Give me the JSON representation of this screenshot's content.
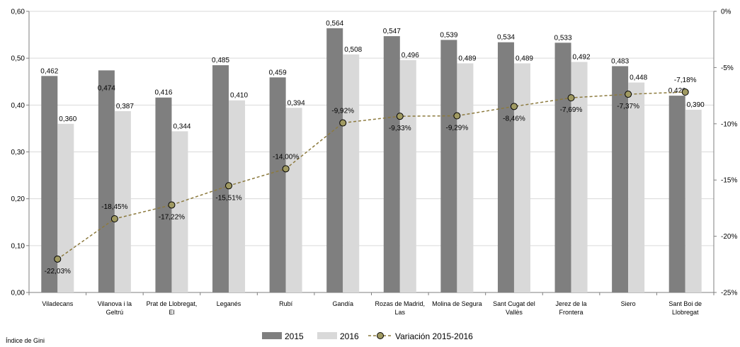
{
  "chart_data": {
    "type": "bar",
    "categories": [
      [
        "Viladecans"
      ],
      [
        "Vilanova i la",
        "Geltrú"
      ],
      [
        "Prat de Llobregat,",
        "El"
      ],
      [
        "Leganés"
      ],
      [
        "Rubí"
      ],
      [
        "Gandía"
      ],
      [
        "Rozas de Madrid,",
        "Las"
      ],
      [
        "Molina de Segura"
      ],
      [
        "Sant Cugat del",
        "Vallès"
      ],
      [
        "Jerez de la",
        "Frontera"
      ],
      [
        "Siero"
      ],
      [
        "Sant Boi de",
        "Llobregat"
      ]
    ],
    "series": [
      {
        "name": "2015",
        "type": "bar",
        "color": "#7f7f7f",
        "values": [
          0.462,
          0.474,
          0.416,
          0.485,
          0.459,
          0.564,
          0.547,
          0.539,
          0.534,
          0.533,
          0.483,
          0.42
        ],
        "labels": [
          "0,462",
          "0,474",
          "0,416",
          "0,485",
          "0,459",
          "0,564",
          "0,547",
          "0,539",
          "0,534",
          "0,533",
          "0,483",
          "0,420"
        ]
      },
      {
        "name": "2016",
        "type": "bar",
        "color": "#d9d9d9",
        "values": [
          0.36,
          0.387,
          0.344,
          0.41,
          0.394,
          0.508,
          0.496,
          0.489,
          0.489,
          0.492,
          0.448,
          0.39
        ],
        "labels": [
          "0,360",
          "0,387",
          "0,344",
          "0,410",
          "0,394",
          "0,508",
          "0,496",
          "0,489",
          "0,489",
          "0,492",
          "0,448",
          "0,390"
        ]
      },
      {
        "name": "Variación 2015-2016",
        "type": "line",
        "axis": "right",
        "color": "#8c7a3e",
        "values": [
          -22.03,
          -18.45,
          -17.22,
          -15.51,
          -14.0,
          -9.92,
          -9.33,
          -9.29,
          -8.46,
          -7.69,
          -7.37,
          -7.18
        ],
        "labels": [
          "-22,03%",
          "-18,45%",
          "-17,22%",
          "-15,51%",
          "-14,00%",
          "-9,92%",
          "-9,33%",
          "-9,29%",
          "-8,46%",
          "-7,69%",
          "-7,37%",
          "-7,18%"
        ]
      }
    ],
    "y_left": {
      "range": [
        0,
        0.6
      ],
      "ticks": [
        0,
        0.1,
        0.2,
        0.3,
        0.4,
        0.5,
        0.6
      ],
      "tick_labels": [
        "0,00",
        "0,10",
        "0,20",
        "0,30",
        "0,40",
        "0,50",
        "0,60"
      ]
    },
    "y_right": {
      "range": [
        -25,
        0
      ],
      "ticks": [
        0,
        -5,
        -10,
        -15,
        -20,
        -25
      ],
      "tick_labels": [
        "0%",
        "-5%",
        "-10%",
        "-15%",
        "-20%",
        "-25%"
      ]
    },
    "ylabel": "Índice de Gini",
    "grid": true,
    "legend_position": "bottom"
  }
}
